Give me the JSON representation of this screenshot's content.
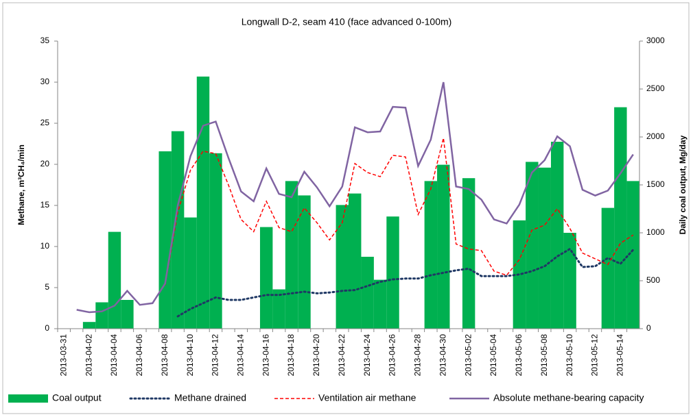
{
  "chart_data": {
    "type": "bar-line",
    "title": "Longwall D-2, seam 410 (face advanced 0-100m)",
    "y_label": "Methane, m³CH₄/min",
    "y2_label": "Daily coal output, Mg/day",
    "categories": [
      "2013-03-31",
      null,
      "2013-04-02",
      null,
      "2013-04-04",
      null,
      "2013-04-06",
      null,
      "2013-04-08",
      null,
      "2013-04-10",
      null,
      "2013-04-12",
      null,
      "2013-04-14",
      null,
      "2013-04-16",
      null,
      "2013-04-18",
      null,
      "2013-04-20",
      null,
      "2013-04-22",
      null,
      "2013-04-24",
      null,
      "2013-04-26",
      null,
      "2013-04-28",
      null,
      "2013-04-30",
      null,
      "2013-05-02",
      null,
      "2013-05-04",
      null,
      "2013-05-06",
      null,
      "2013-05-08",
      null,
      "2013-05-10",
      null,
      "2013-05-12",
      null,
      "2013-05-14",
      null
    ],
    "series": [
      {
        "name": "Coal output",
        "type": "bar",
        "axis": "y2",
        "color": "#00b050",
        "values": [
          null,
          null,
          70,
          275,
          1010,
          300,
          null,
          null,
          1850,
          2060,
          1160,
          2630,
          1830,
          null,
          null,
          null,
          1060,
          410,
          1540,
          1390,
          null,
          null,
          1290,
          1410,
          750,
          510,
          1170,
          null,
          null,
          1540,
          1710,
          null,
          1570,
          null,
          null,
          null,
          1130,
          1740,
          1680,
          1950,
          1000,
          null,
          null,
          1260,
          2310,
          1540
        ]
      },
      {
        "name": "Methane drained",
        "type": "line",
        "style": "dotted",
        "color": "#1f3864",
        "values": [
          null,
          null,
          null,
          null,
          null,
          null,
          null,
          null,
          null,
          1.5,
          2.4,
          3.1,
          3.8,
          3.5,
          3.5,
          3.8,
          4.1,
          4.1,
          4.3,
          4.5,
          4.3,
          4.4,
          4.6,
          4.7,
          5.2,
          5.7,
          6,
          6.1,
          6.1,
          6.5,
          6.8,
          7.1,
          7.3,
          6.4,
          6.4,
          6.4,
          6.6,
          7,
          7.6,
          8.8,
          9.7,
          7.5,
          7.6,
          8.6,
          7.9,
          9.6
        ]
      },
      {
        "name": "Ventilation air methane",
        "type": "line",
        "style": "dashed",
        "color": "#ff0000",
        "values": [
          null,
          null,
          null,
          null,
          null,
          null,
          null,
          null,
          5.3,
          14.2,
          19.3,
          21.6,
          21.3,
          17.5,
          13.3,
          11.8,
          15.5,
          12.3,
          11.8,
          14.7,
          12.9,
          10.8,
          12.9,
          20.1,
          19,
          18.5,
          21.1,
          20.9,
          13.9,
          17,
          23.2,
          10.3,
          9.7,
          9.5,
          7,
          6.5,
          8.4,
          12,
          12.6,
          14.6,
          12.2,
          9.2,
          8.5,
          7.8,
          10.4,
          11.4
        ]
      },
      {
        "name": "Absolute methane-bearing capacity",
        "type": "line",
        "style": "solid",
        "color": "#8064a2",
        "values": [
          null,
          2.3,
          2.0,
          2.1,
          2.8,
          4.6,
          2.9,
          3.1,
          5.5,
          15,
          21,
          24.7,
          25.2,
          20.8,
          16.7,
          15.5,
          19.5,
          16.4,
          16,
          19.1,
          17.2,
          14.9,
          17.3,
          24.5,
          23.9,
          24,
          27,
          26.9,
          19.8,
          23,
          30,
          17.3,
          17,
          15.7,
          13.3,
          12.8,
          15.1,
          19,
          20.5,
          23.4,
          22.2,
          16.9,
          16.2,
          16.8,
          18.9,
          21.2
        ]
      }
    ],
    "ylim": [
      0,
      35
    ],
    "yticks": [
      0,
      5,
      10,
      15,
      20,
      25,
      30,
      35
    ],
    "y2lim": [
      0,
      3000
    ],
    "y2ticks": [
      0,
      500,
      1000,
      1500,
      2000,
      2500,
      3000
    ],
    "grid": false,
    "legend": "bottom"
  }
}
